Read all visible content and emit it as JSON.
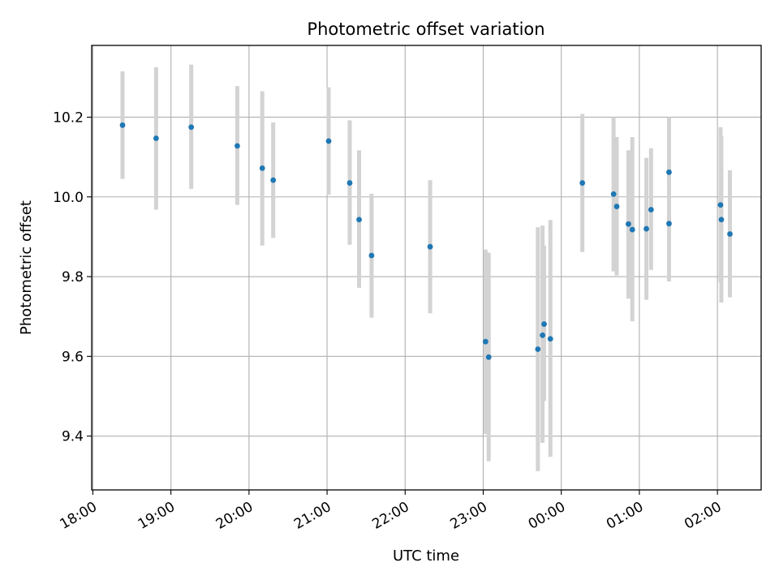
{
  "chart_data": {
    "type": "scatter",
    "title": "Photometric offset variation",
    "xlabel": "UTC time",
    "ylabel": "Photometric offset",
    "x_unit": "hours since 18:00 UTC",
    "xlim": [
      -0.015,
      8.56
    ],
    "ylim": [
      9.265,
      10.38
    ],
    "grid": true,
    "legend": "none",
    "x_ticks": [
      {
        "value": 0,
        "label": "18:00"
      },
      {
        "value": 1,
        "label": "19:00"
      },
      {
        "value": 2,
        "label": "20:00"
      },
      {
        "value": 3,
        "label": "21:00"
      },
      {
        "value": 4,
        "label": "22:00"
      },
      {
        "value": 5,
        "label": "23:00"
      },
      {
        "value": 6,
        "label": "00:00"
      },
      {
        "value": 7,
        "label": "01:00"
      },
      {
        "value": 8,
        "label": "02:00"
      }
    ],
    "y_ticks": [
      {
        "value": 9.4,
        "label": "9.4"
      },
      {
        "value": 9.6,
        "label": "9.6"
      },
      {
        "value": 9.8,
        "label": "9.8"
      },
      {
        "value": 10.0,
        "label": "10.0"
      },
      {
        "value": 10.2,
        "label": "10.2"
      }
    ],
    "colors": {
      "marker": "#1f77b4",
      "errorbar": "#d3d3d3",
      "grid": "#b0b0b0"
    },
    "points": [
      {
        "x": 0.38,
        "y": 10.18,
        "lo": 10.045,
        "hi": 10.315
      },
      {
        "x": 0.81,
        "y": 10.147,
        "lo": 9.968,
        "hi": 10.325
      },
      {
        "x": 1.26,
        "y": 10.175,
        "lo": 10.02,
        "hi": 10.332
      },
      {
        "x": 1.85,
        "y": 10.128,
        "lo": 9.98,
        "hi": 10.278
      },
      {
        "x": 2.17,
        "y": 10.072,
        "lo": 9.878,
        "hi": 10.265
      },
      {
        "x": 2.31,
        "y": 10.042,
        "lo": 9.897,
        "hi": 10.187
      },
      {
        "x": 3.02,
        "y": 10.14,
        "lo": 10.005,
        "hi": 10.275
      },
      {
        "x": 3.29,
        "y": 10.035,
        "lo": 9.88,
        "hi": 10.192
      },
      {
        "x": 3.41,
        "y": 9.943,
        "lo": 9.772,
        "hi": 10.117
      },
      {
        "x": 3.57,
        "y": 9.853,
        "lo": 9.697,
        "hi": 10.008
      },
      {
        "x": 4.32,
        "y": 9.875,
        "lo": 9.708,
        "hi": 10.042
      },
      {
        "x": 5.03,
        "y": 9.637,
        "lo": 9.405,
        "hi": 9.868
      },
      {
        "x": 5.07,
        "y": 9.598,
        "lo": 9.337,
        "hi": 9.86
      },
      {
        "x": 5.7,
        "y": 9.618,
        "lo": 9.312,
        "hi": 9.924
      },
      {
        "x": 5.76,
        "y": 9.653,
        "lo": 9.383,
        "hi": 9.928
      },
      {
        "x": 5.78,
        "y": 9.681,
        "lo": 9.488,
        "hi": 9.878
      },
      {
        "x": 5.86,
        "y": 9.644,
        "lo": 9.348,
        "hi": 9.942
      },
      {
        "x": 6.27,
        "y": 10.035,
        "lo": 9.862,
        "hi": 10.208
      },
      {
        "x": 6.67,
        "y": 10.007,
        "lo": 9.813,
        "hi": 10.2
      },
      {
        "x": 6.71,
        "y": 9.976,
        "lo": 9.803,
        "hi": 10.15
      },
      {
        "x": 6.86,
        "y": 9.932,
        "lo": 9.745,
        "hi": 10.117
      },
      {
        "x": 6.91,
        "y": 9.918,
        "lo": 9.688,
        "hi": 10.15
      },
      {
        "x": 7.09,
        "y": 9.92,
        "lo": 9.742,
        "hi": 10.098
      },
      {
        "x": 7.15,
        "y": 9.968,
        "lo": 9.817,
        "hi": 10.122
      },
      {
        "x": 7.38,
        "y": 10.062,
        "lo": 9.925,
        "hi": 10.2
      },
      {
        "x": 7.38,
        "y": 9.933,
        "lo": 9.788,
        "hi": 10.078
      },
      {
        "x": 8.04,
        "y": 9.98,
        "lo": 9.785,
        "hi": 10.175
      },
      {
        "x": 8.05,
        "y": 9.943,
        "lo": 9.735,
        "hi": 10.152
      },
      {
        "x": 8.16,
        "y": 9.907,
        "lo": 9.748,
        "hi": 10.067
      }
    ]
  }
}
